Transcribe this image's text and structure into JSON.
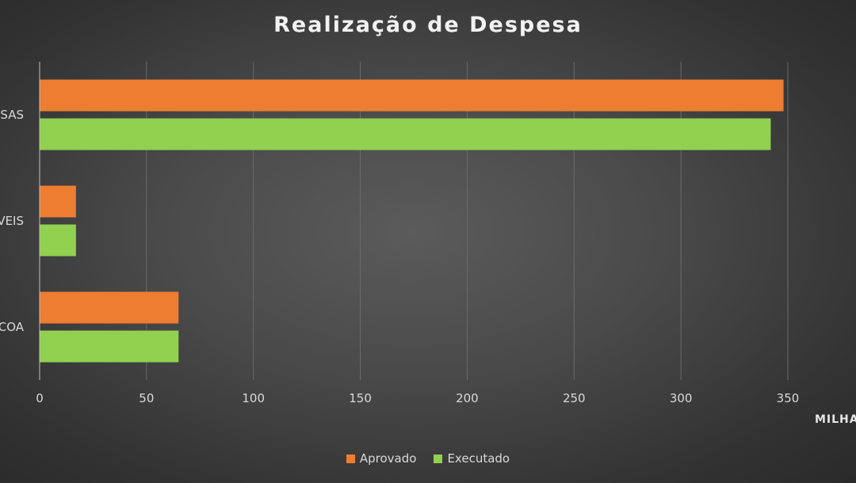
{
  "chart_data": {
    "type": "bar",
    "orientation": "horizontal",
    "title": "Realização de Despesa",
    "categories": [
      "SAS",
      "VEIS",
      "COA"
    ],
    "series": [
      {
        "name": "Aprovado",
        "color": "#ed7d31",
        "values": [
          348,
          17,
          65
        ]
      },
      {
        "name": "Executado",
        "color": "#92d050",
        "values": [
          342,
          17,
          65
        ]
      }
    ],
    "xaxis_ticks": [
      "0",
      "50",
      "100",
      "150",
      "200",
      "250",
      "300",
      "350"
    ],
    "xlim": [
      0,
      350
    ],
    "xlabel": "MILHA",
    "grid": true,
    "legend_position": "bottom"
  }
}
